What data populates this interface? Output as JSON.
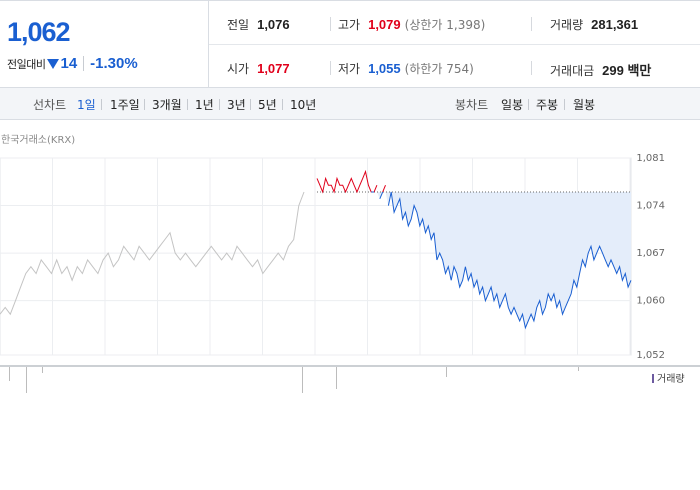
{
  "header": {
    "price": "1,062",
    "change_label": "전일대비",
    "change_value": "14",
    "change_percent": "-1.30%",
    "prev_close_label": "전일",
    "prev_close": "1,076",
    "high_label": "고가",
    "high": "1,079",
    "upper_limit": "(상한가 1,398)",
    "volume_label": "거래량",
    "volume": "281,361",
    "open_label": "시가",
    "open": "1,077",
    "low_label": "저가",
    "low": "1,055",
    "lower_limit": "(하한가 754)",
    "amount_label": "거래대금",
    "amount": "299 백만"
  },
  "tabs": {
    "line_label": "선차트",
    "line_items": [
      "1일",
      "1주일",
      "3개월",
      "1년",
      "3년",
      "5년",
      "10년"
    ],
    "active": "1일",
    "candle_label": "봉차트",
    "candle_items": [
      "일봉",
      "주봉",
      "월봉"
    ]
  },
  "source": "한국거래소(KRX)",
  "colors": {
    "up": "#e0001b",
    "down": "#1a5fd1",
    "prev_close_fill": "#e4edfa",
    "prev_day_line": "#c4c4c4",
    "volume_bar": "#6d5ba0"
  },
  "chart_data": {
    "type": "line",
    "title": "",
    "xlabel": "",
    "ylabel": "",
    "ylim": [
      1052,
      1081
    ],
    "y_ticks": [
      "1,081",
      "1,074",
      "1,067",
      "1,060",
      "1,052"
    ],
    "reference_line": 1076,
    "grid": true,
    "series": [
      {
        "role": "previous-day",
        "values": [
          1058,
          1059,
          1058,
          1060,
          1062,
          1064,
          1065,
          1064,
          1066,
          1065,
          1064,
          1066,
          1064,
          1065,
          1063,
          1065,
          1064,
          1066,
          1065,
          1064,
          1066,
          1067,
          1065,
          1066,
          1068,
          1067,
          1066,
          1068,
          1067,
          1066,
          1067,
          1068,
          1069,
          1070,
          1067,
          1066,
          1067,
          1066,
          1065,
          1066,
          1067,
          1068,
          1067,
          1066,
          1067,
          1066,
          1068,
          1067,
          1066,
          1065,
          1066,
          1064,
          1065,
          1066,
          1067,
          1066,
          1068,
          1069,
          1074,
          1076
        ]
      },
      {
        "role": "today",
        "values": [
          1078,
          1077,
          1076,
          1078,
          1077,
          1077,
          1076,
          1078,
          1077,
          1077,
          1076,
          1077,
          1078,
          1077,
          1076,
          1077,
          1078,
          1079,
          1077,
          1076,
          1076,
          1077,
          1075,
          1076,
          1077,
          1074,
          1076,
          1073,
          1074,
          1075,
          1072,
          1073,
          1071,
          1072,
          1074,
          1073,
          1071,
          1072,
          1070,
          1071,
          1069,
          1070,
          1066,
          1067,
          1066,
          1064,
          1065,
          1063,
          1065,
          1064,
          1062,
          1063,
          1065,
          1063,
          1064,
          1062,
          1063,
          1061,
          1062,
          1060,
          1061,
          1062,
          1060,
          1061,
          1059,
          1060,
          1061,
          1059,
          1058,
          1059,
          1058,
          1057,
          1058,
          1056,
          1057,
          1058,
          1057,
          1059,
          1060,
          1058,
          1059,
          1061,
          1060,
          1061,
          1059,
          1060,
          1058,
          1059,
          1060,
          1061,
          1063,
          1062,
          1064,
          1066,
          1065,
          1067,
          1068,
          1066,
          1067,
          1068,
          1067,
          1066,
          1065,
          1066,
          1065,
          1064,
          1065,
          1063,
          1064,
          1062,
          1063
        ]
      }
    ],
    "volume_legend": "거래량"
  }
}
